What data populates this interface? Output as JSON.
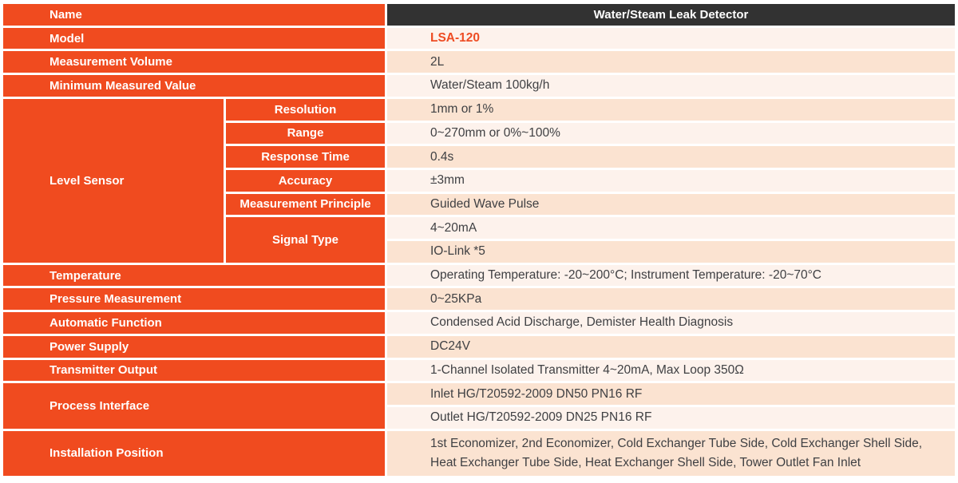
{
  "colors": {
    "orange": "#f04b1f",
    "header_bar": "#323232",
    "model_text": "#ee4c23",
    "row_light": "#fdf2ec",
    "row_dark": "#fbe3d1",
    "value_text": "#3f4043"
  },
  "table": {
    "header": {
      "label": "Name",
      "value": "Water/Steam Leak Detector"
    },
    "rows": {
      "model": {
        "label": "Model",
        "value": "LSA-120"
      },
      "measurement_volume": {
        "label": "Measurement Volume",
        "value": "2L"
      },
      "minimum_measured_value": {
        "label": "Minimum Measured Value",
        "value": "Water/Steam 100kg/h"
      },
      "temperature": {
        "label": "Temperature",
        "value": "Operating Temperature: -20~200°C; Instrument Temperature: -20~70°C"
      },
      "pressure_measurement": {
        "label": "Pressure Measurement",
        "value": "0~25KPa"
      },
      "automatic_function": {
        "label": "Automatic Function",
        "value": "Condensed Acid Discharge, Demister Health Diagnosis"
      },
      "power_supply": {
        "label": "Power Supply",
        "value": "DC24V"
      },
      "transmitter_output": {
        "label": "Transmitter Output",
        "value": "1-Channel Isolated Transmitter 4~20mA, Max Loop 350Ω"
      }
    },
    "level_sensor": {
      "label": "Level Sensor",
      "resolution": {
        "label": "Resolution",
        "value": "1mm or 1%"
      },
      "range": {
        "label": "Range",
        "value": "0~270mm or 0%~100%"
      },
      "response_time": {
        "label": "Response Time",
        "value": "0.4s"
      },
      "accuracy": {
        "label": "Accuracy",
        "value": "±3mm"
      },
      "measurement_principle": {
        "label": "Measurement Principle",
        "value": "Guided Wave Pulse"
      },
      "signal_type": {
        "label": "Signal Type",
        "values": [
          "4~20mA",
          "IO-Link *5"
        ]
      }
    },
    "process_interface": {
      "label": "Process Interface",
      "values": [
        "Inlet HG/T20592-2009 DN50 PN16 RF",
        "Outlet HG/T20592-2009 DN25 PN16 RF"
      ]
    },
    "installation_position": {
      "label": "Installation Position",
      "value": "1st Economizer, 2nd Economizer, Cold Exchanger Tube Side, Cold Exchanger Shell Side, Heat Exchanger Tube Side, Heat Exchanger Shell Side, Tower Outlet Fan Inlet"
    }
  }
}
